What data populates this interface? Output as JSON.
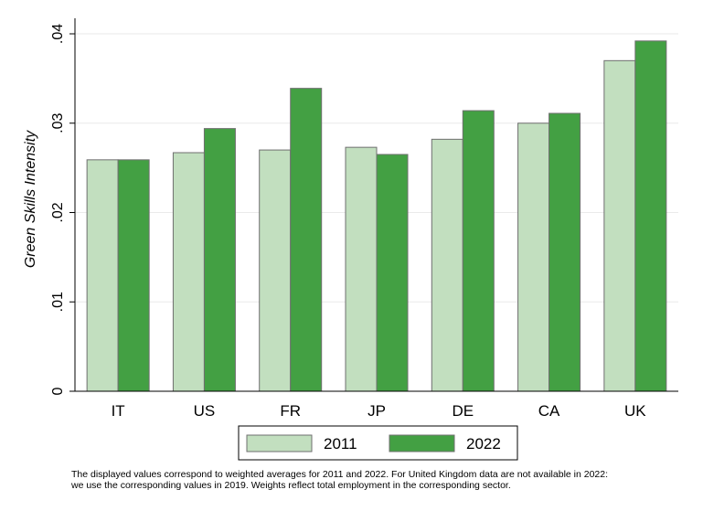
{
  "chart_data": {
    "type": "bar",
    "ylabel": "Green Skills Intensity",
    "xlabel": "",
    "ylim": [
      0,
      0.04
    ],
    "yticks": [
      0,
      0.01,
      0.02,
      0.03,
      0.04
    ],
    "ytick_labels": [
      "0",
      ".01",
      ".02",
      ".03",
      ".04"
    ],
    "grid": true,
    "legend_position": "bottom",
    "categories": [
      "IT",
      "US",
      "FR",
      "JP",
      "DE",
      "CA",
      "UK"
    ],
    "series": [
      {
        "name": "2011",
        "color": "#c2dfbf",
        "values": [
          0.0259,
          0.0267,
          0.027,
          0.0273,
          0.0282,
          0.03,
          0.037
        ]
      },
      {
        "name": "2022",
        "color": "#43a043",
        "values": [
          0.0259,
          0.0294,
          0.0339,
          0.0265,
          0.0314,
          0.0311,
          0.0392
        ]
      }
    ]
  },
  "note": {
    "line1": "The displayed values correspond to weighted averages for 2011 and 2022. For United Kingdom data are not available in 2022:",
    "line2": "we use the corresponding values in 2019. Weights reflect total employment in the corresponding sector."
  }
}
